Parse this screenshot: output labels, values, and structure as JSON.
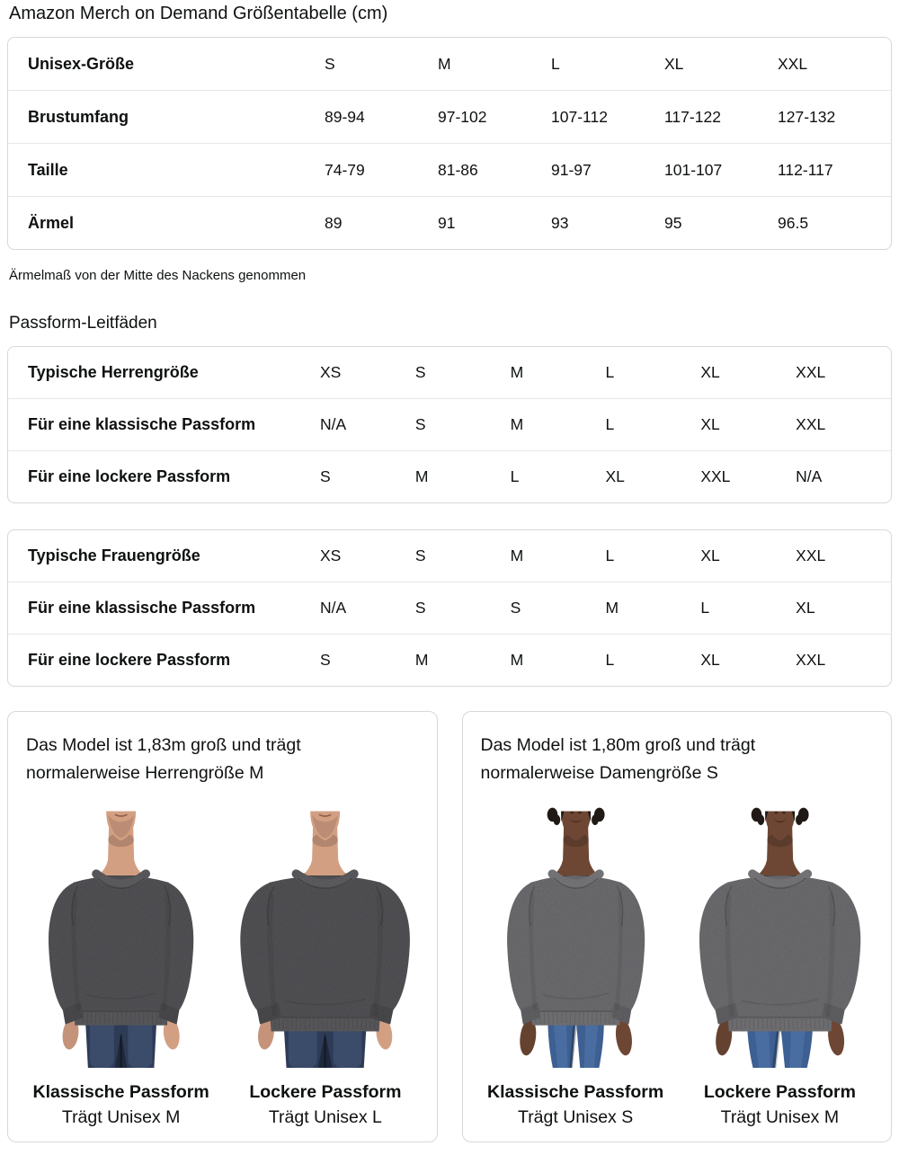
{
  "page": {
    "title": "Amazon Merch on Demand Größentabelle (cm)",
    "note": "Ärmelmaß von der Mitte des Nackens genommen",
    "fit_heading": "Passform-Leitfäden"
  },
  "size_table": {
    "header_label": "Unisex-Größe",
    "header_sizes": [
      "S",
      "M",
      "L",
      "XL",
      "XXL"
    ],
    "rows": [
      {
        "label": "Brustumfang",
        "values": [
          "89-94",
          "97-102",
          "107-112",
          "117-122",
          "127-132"
        ]
      },
      {
        "label": "Taille",
        "values": [
          "74-79",
          "81-86",
          "91-97",
          "101-107",
          "112-117"
        ]
      },
      {
        "label": "Ärmel",
        "values": [
          "89",
          "91",
          "93",
          "95",
          "96.5"
        ]
      }
    ]
  },
  "fit_tables": [
    {
      "rows": [
        {
          "label": "Typische Herrengröße",
          "values": [
            "XS",
            "S",
            "M",
            "L",
            "XL",
            "XXL"
          ]
        },
        {
          "label": "Für eine klassische Passform",
          "values": [
            "N/A",
            "S",
            "M",
            "L",
            "XL",
            "XXL"
          ]
        },
        {
          "label": "Für eine lockere Passform",
          "values": [
            "S",
            "M",
            "L",
            "XL",
            "XXL",
            "N/A"
          ]
        }
      ]
    },
    {
      "rows": [
        {
          "label": "Typische Frauengröße",
          "values": [
            "XS",
            "S",
            "M",
            "L",
            "XL",
            "XXL"
          ]
        },
        {
          "label": "Für eine klassische Passform",
          "values": [
            "N/A",
            "S",
            "S",
            "M",
            "L",
            "XL"
          ]
        },
        {
          "label": "Für eine lockere Passform",
          "values": [
            "S",
            "M",
            "M",
            "L",
            "XL",
            "XXL"
          ]
        }
      ]
    }
  ],
  "model_cards": [
    {
      "description": "Das Model ist 1,83m groß und trägt normalerweise Herrengröße M",
      "figures": [
        {
          "fit_label": "Klassische Passform",
          "size_label": "Trägt Unisex M",
          "gender": "male",
          "fit": "classic"
        },
        {
          "fit_label": "Lockere Passform",
          "size_label": "Trägt Unisex L",
          "gender": "male",
          "fit": "loose"
        }
      ]
    },
    {
      "description": "Das Model ist 1,80m groß und trägt normalerweise Damengröße S",
      "figures": [
        {
          "fit_label": "Klassische Passform",
          "size_label": "Trägt Unisex S",
          "gender": "female",
          "fit": "classic"
        },
        {
          "fit_label": "Lockere Passform",
          "size_label": "Trägt Unisex M",
          "gender": "female",
          "fit": "loose"
        }
      ]
    }
  ],
  "colors": {
    "text": "#0f1111",
    "border": "#d5d9d9",
    "divider": "#e7e7e7",
    "male_sweatshirt": "#48484c",
    "female_sweatshirt": "#66666a",
    "male_skin": "#d39f83",
    "female_skin": "#6d4734",
    "male_jeans": "#2d3b56",
    "male_jeans_wash": "#4a5c7e",
    "female_jeans": "#3d5f92",
    "female_jeans_wash": "#5b7fb4",
    "female_hair": "#201916"
  }
}
